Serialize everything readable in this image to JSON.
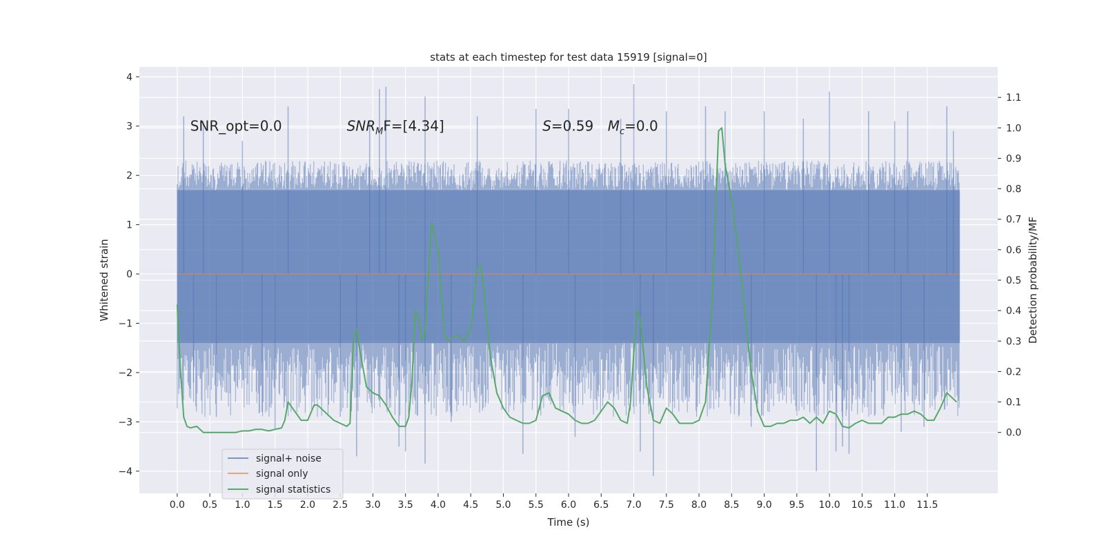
{
  "chart_data": {
    "type": "line",
    "title": "stats at each timestep for test data 15919 [signal=0]",
    "xlabel": "Time (s)",
    "ylabel": "Whitened strain",
    "y2label": "Detection probability/MF",
    "xlim": [
      -0.58,
      12.58
    ],
    "ylim": [
      -4.45,
      4.2
    ],
    "y2lim": [
      -0.2,
      1.2
    ],
    "xticks": [
      0.0,
      0.5,
      1.0,
      1.5,
      2.0,
      2.5,
      3.0,
      3.5,
      4.0,
      4.5,
      5.0,
      5.5,
      6.0,
      6.5,
      7.0,
      7.5,
      8.0,
      8.5,
      9.0,
      9.5,
      10.0,
      10.5,
      11.0,
      11.5
    ],
    "xtick_labels": [
      "0.0",
      "0.5",
      "1.0",
      "1.5",
      "2.0",
      "2.5",
      "3.0",
      "3.5",
      "4.0",
      "4.5",
      "5.0",
      "5.5",
      "6.0",
      "6.5",
      "7.0",
      "7.5",
      "8.0",
      "8.5",
      "9.0",
      "9.5",
      "10.0",
      "10.5",
      "11.0",
      "11.5"
    ],
    "yticks": [
      -4,
      -3,
      -2,
      -1,
      0,
      1,
      2,
      3,
      4
    ],
    "ytick_labels": [
      "−4",
      "−3",
      "−2",
      "−1",
      "0",
      "1",
      "2",
      "3",
      "4"
    ],
    "y2ticks": [
      0.0,
      0.1,
      0.2,
      0.3,
      0.4,
      0.5,
      0.6,
      0.7,
      0.8,
      0.9,
      1.0,
      1.1
    ],
    "y2tick_labels": [
      "0.0",
      "0.1",
      "0.2",
      "0.3",
      "0.4",
      "0.5",
      "0.6",
      "0.7",
      "0.8",
      "0.9",
      "1.0",
      "1.1"
    ],
    "grid": true,
    "legend_position": "lower-left",
    "annotations": [
      {
        "text_before": "SNR_opt=0.0",
        "x": 0.2,
        "y": 3.0
      },
      {
        "math_var": "SNR",
        "math_sub": "M",
        "text_after": "F=[4.34]",
        "x": 2.6,
        "y": 3.0
      },
      {
        "math_var": "S",
        "text_after": "=0.59",
        "x": 5.6,
        "y": 3.0
      },
      {
        "math_var": "M",
        "math_sub": "c",
        "text_after": "=0.0",
        "x": 6.6,
        "y": 3.0
      }
    ],
    "series": [
      {
        "name": "signal+ noise",
        "color": "#4c72b0",
        "axis": "left",
        "style": "dense-noise",
        "x_range": [
          0.0,
          12.0
        ],
        "core_range": [
          -1.4,
          1.7
        ],
        "envelope_range": [
          -2.9,
          2.3
        ],
        "spikes": [
          [
            0.1,
            3.2
          ],
          [
            0.25,
            -2.2
          ],
          [
            0.4,
            3.1
          ],
          [
            0.6,
            -2.9
          ],
          [
            1.0,
            2.7
          ],
          [
            1.3,
            -2.8
          ],
          [
            1.5,
            -3.15
          ],
          [
            1.7,
            3.4
          ],
          [
            2.5,
            -2.9
          ],
          [
            2.75,
            -3.7
          ],
          [
            2.95,
            3.1
          ],
          [
            3.1,
            3.75
          ],
          [
            3.2,
            3.8
          ],
          [
            3.4,
            -3.5
          ],
          [
            3.5,
            -3.6
          ],
          [
            3.8,
            -3.85
          ],
          [
            3.8,
            3.6
          ],
          [
            4.2,
            -3.0
          ],
          [
            4.6,
            3.2
          ],
          [
            5.3,
            -3.65
          ],
          [
            5.5,
            3.35
          ],
          [
            6.0,
            3.35
          ],
          [
            6.1,
            -3.3
          ],
          [
            6.8,
            3.15
          ],
          [
            7.0,
            3.85
          ],
          [
            7.1,
            -3.6
          ],
          [
            7.3,
            -4.1
          ],
          [
            7.5,
            3.3
          ],
          [
            8.1,
            3.4
          ],
          [
            8.4,
            3.3
          ],
          [
            8.8,
            -3.1
          ],
          [
            9.0,
            3.3
          ],
          [
            9.6,
            3.15
          ],
          [
            9.8,
            -4.0
          ],
          [
            10.0,
            3.7
          ],
          [
            10.1,
            -3.6
          ],
          [
            10.2,
            -3.5
          ],
          [
            10.3,
            -3.65
          ],
          [
            10.6,
            3.3
          ],
          [
            11.0,
            3.1
          ],
          [
            11.1,
            -3.2
          ],
          [
            11.2,
            3.3
          ],
          [
            11.45,
            -3.1
          ],
          [
            11.8,
            3.4
          ],
          [
            11.9,
            2.9
          ]
        ]
      },
      {
        "name": "signal only",
        "color": "#dd8452",
        "axis": "left",
        "x": [
          0.0,
          12.0
        ],
        "y": [
          0.0,
          0.0
        ]
      },
      {
        "name": "signal statistics",
        "color": "#55a868",
        "axis": "right",
        "x": [
          0.0,
          0.05,
          0.1,
          0.15,
          0.2,
          0.3,
          0.4,
          0.5,
          0.6,
          0.7,
          0.8,
          0.9,
          1.0,
          1.1,
          1.2,
          1.3,
          1.4,
          1.5,
          1.6,
          1.65,
          1.7,
          1.8,
          1.9,
          2.0,
          2.1,
          2.15,
          2.2,
          2.3,
          2.4,
          2.5,
          2.6,
          2.65,
          2.7,
          2.75,
          2.8,
          2.9,
          3.0,
          3.1,
          3.2,
          3.3,
          3.4,
          3.5,
          3.55,
          3.6,
          3.65,
          3.7,
          3.75,
          3.8,
          3.9,
          4.0,
          4.05,
          4.1,
          4.15,
          4.2,
          4.3,
          4.4,
          4.5,
          4.6,
          4.65,
          4.7,
          4.8,
          4.9,
          5.0,
          5.1,
          5.2,
          5.3,
          5.4,
          5.5,
          5.6,
          5.7,
          5.8,
          5.9,
          6.0,
          6.1,
          6.2,
          6.3,
          6.4,
          6.5,
          6.6,
          6.7,
          6.8,
          6.9,
          6.95,
          7.0,
          7.05,
          7.1,
          7.2,
          7.3,
          7.4,
          7.5,
          7.6,
          7.7,
          7.8,
          7.9,
          8.0,
          8.1,
          8.2,
          8.3,
          8.35,
          8.4,
          8.45,
          8.5,
          8.6,
          8.7,
          8.8,
          8.9,
          9.0,
          9.1,
          9.2,
          9.3,
          9.4,
          9.5,
          9.6,
          9.7,
          9.8,
          9.9,
          10.0,
          10.1,
          10.2,
          10.3,
          10.4,
          10.5,
          10.6,
          10.7,
          10.8,
          10.9,
          11.0,
          11.1,
          11.2,
          11.3,
          11.4,
          11.5,
          11.6,
          11.7,
          11.8,
          11.9,
          11.95
        ],
        "y": [
          0.42,
          0.2,
          0.05,
          0.02,
          0.015,
          0.02,
          0.0,
          0.0,
          0.0,
          0.0,
          0.0,
          0.0,
          0.005,
          0.005,
          0.01,
          0.01,
          0.005,
          0.01,
          0.015,
          0.04,
          0.1,
          0.07,
          0.04,
          0.04,
          0.09,
          0.09,
          0.08,
          0.06,
          0.04,
          0.03,
          0.02,
          0.03,
          0.3,
          0.34,
          0.27,
          0.15,
          0.13,
          0.12,
          0.09,
          0.05,
          0.02,
          0.02,
          0.05,
          0.17,
          0.4,
          0.38,
          0.3,
          0.33,
          0.69,
          0.6,
          0.45,
          0.32,
          0.3,
          0.31,
          0.32,
          0.3,
          0.34,
          0.54,
          0.55,
          0.47,
          0.25,
          0.13,
          0.08,
          0.05,
          0.04,
          0.03,
          0.03,
          0.04,
          0.12,
          0.13,
          0.08,
          0.07,
          0.06,
          0.04,
          0.03,
          0.03,
          0.04,
          0.07,
          0.1,
          0.08,
          0.04,
          0.03,
          0.1,
          0.26,
          0.4,
          0.37,
          0.15,
          0.04,
          0.03,
          0.08,
          0.06,
          0.03,
          0.03,
          0.03,
          0.04,
          0.1,
          0.43,
          0.99,
          1.0,
          0.88,
          0.82,
          0.76,
          0.6,
          0.4,
          0.2,
          0.07,
          0.02,
          0.02,
          0.03,
          0.03,
          0.04,
          0.04,
          0.05,
          0.03,
          0.05,
          0.03,
          0.07,
          0.06,
          0.02,
          0.015,
          0.03,
          0.04,
          0.03,
          0.03,
          0.03,
          0.05,
          0.05,
          0.06,
          0.06,
          0.07,
          0.06,
          0.04,
          0.04,
          0.08,
          0.13,
          0.11,
          0.1
        ]
      }
    ]
  }
}
